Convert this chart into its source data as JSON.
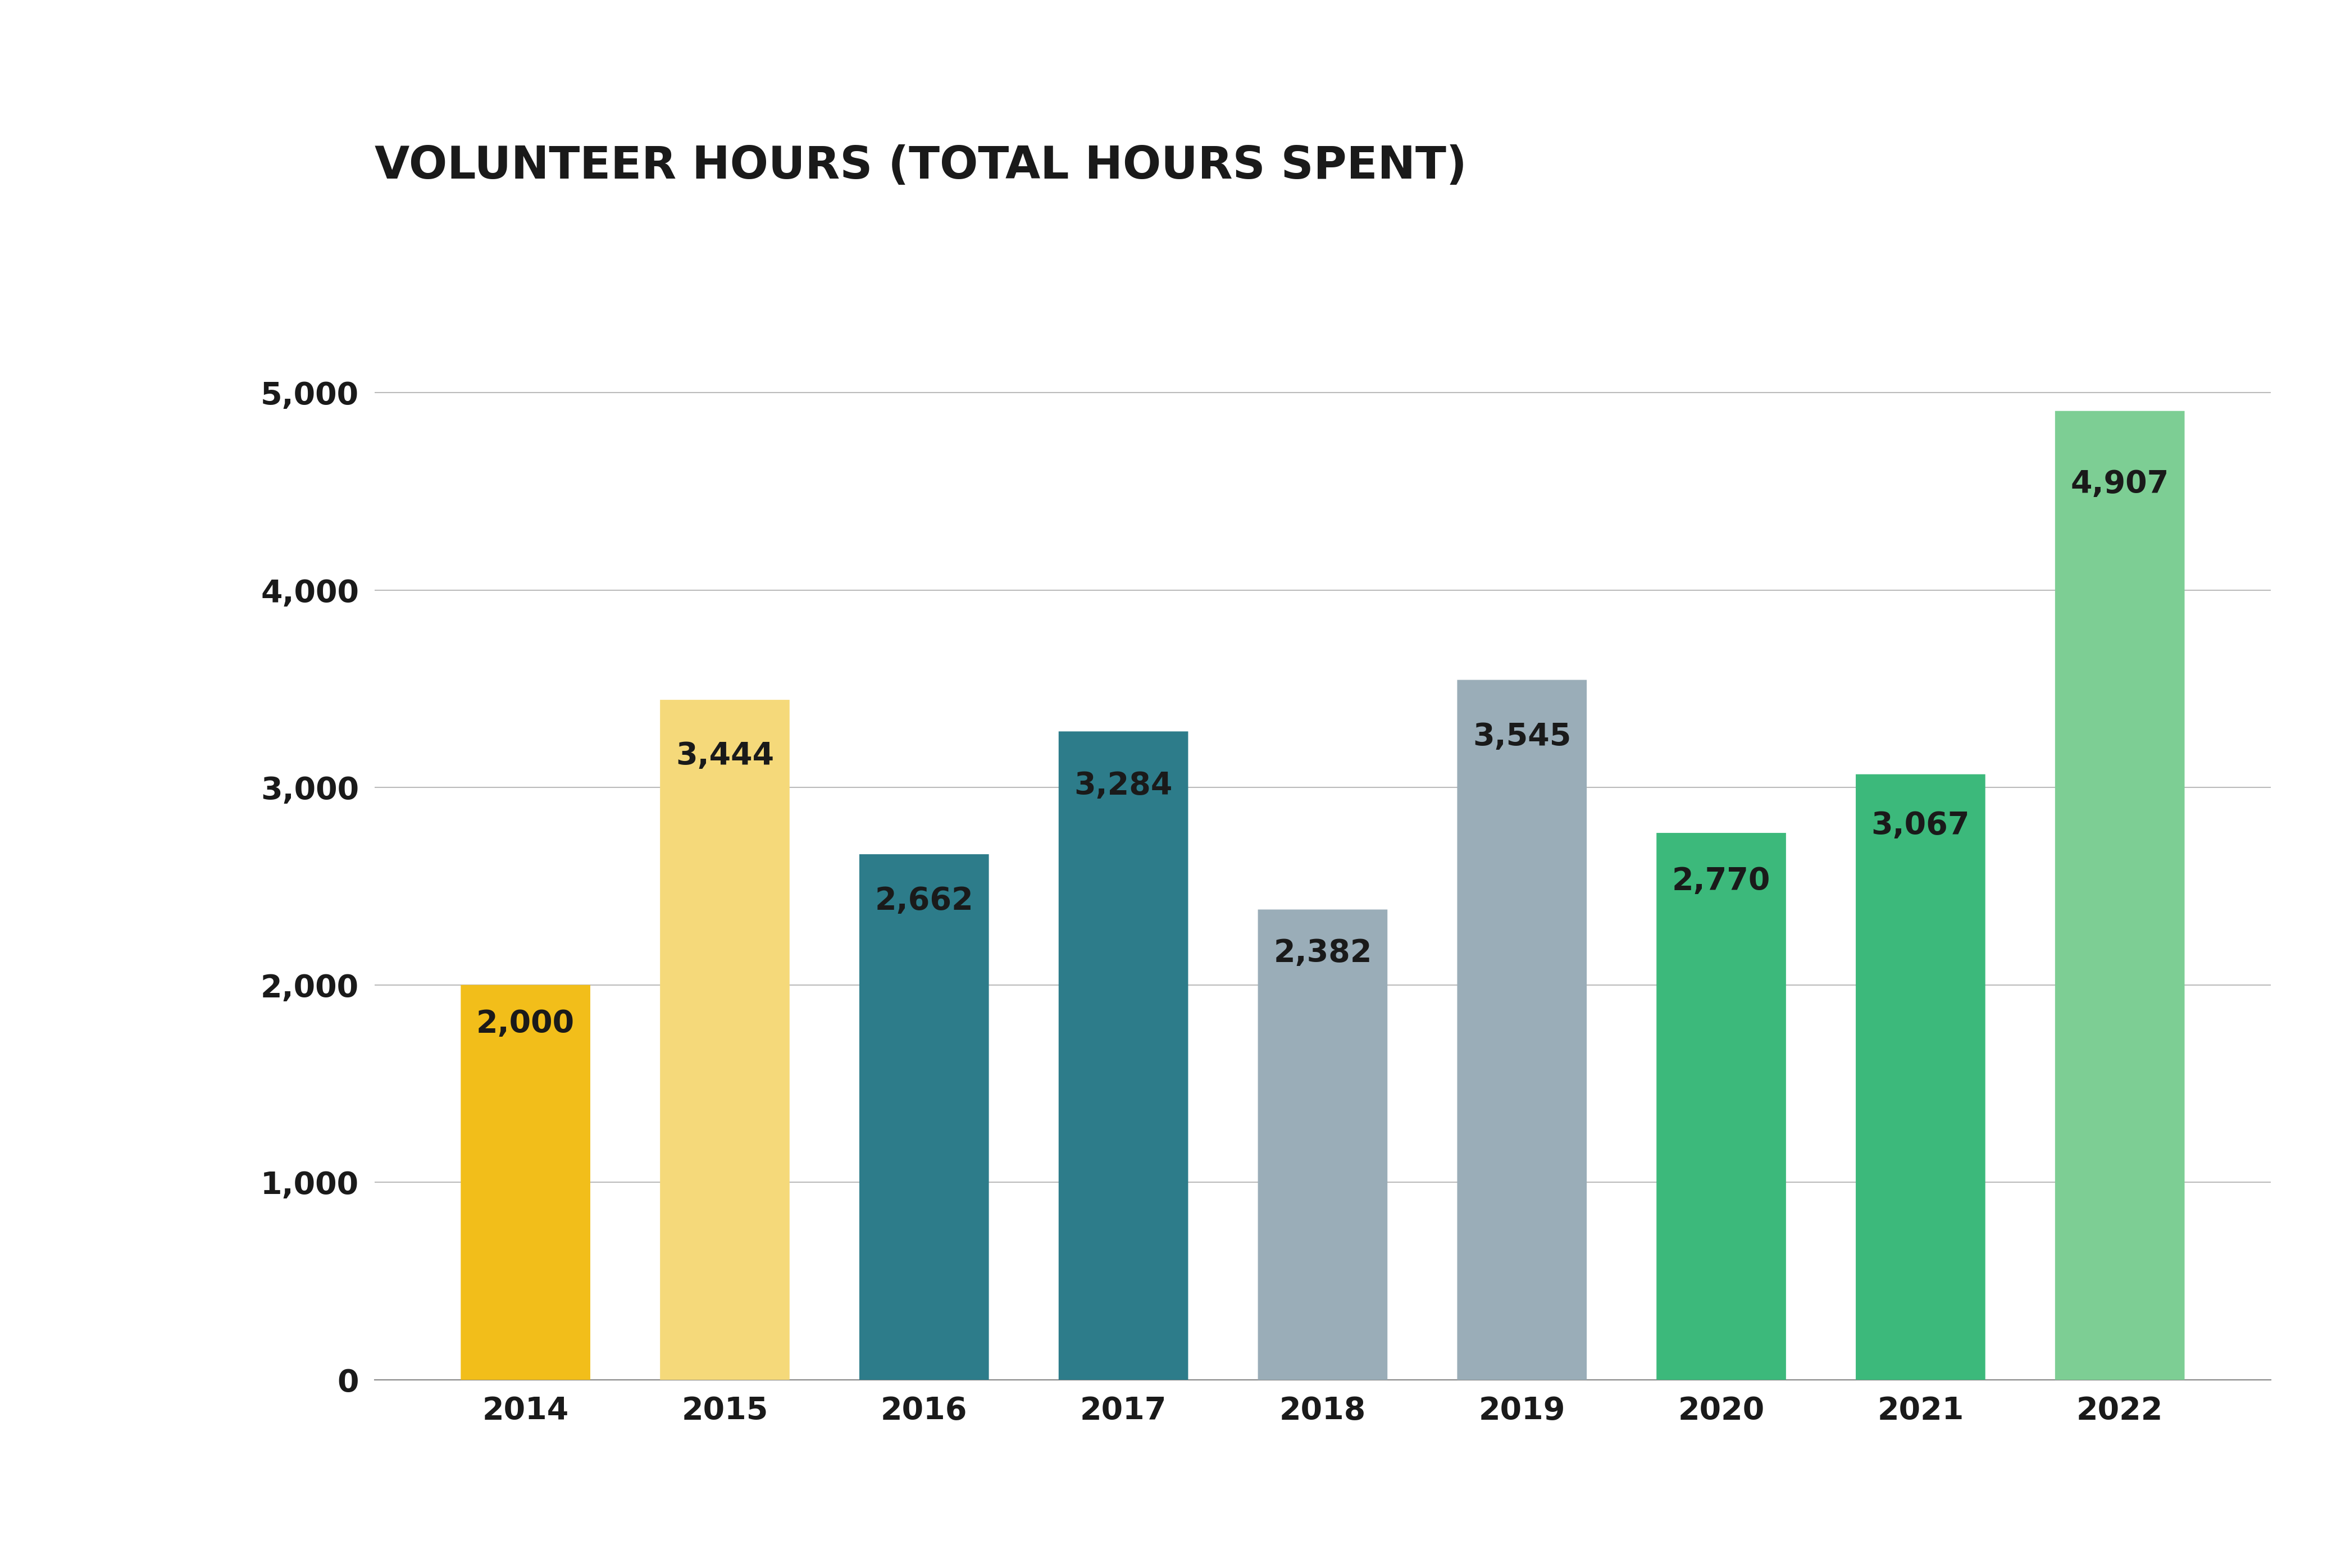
{
  "title": "VOLUNTEER HOURS (TOTAL HOURS SPENT)",
  "categories": [
    "2014",
    "2015",
    "2016",
    "2017",
    "2018",
    "2019",
    "2020",
    "2021",
    "2022"
  ],
  "values": [
    2000,
    3444,
    2662,
    3284,
    2382,
    3545,
    2770,
    3067,
    4907
  ],
  "bar_colors": [
    "#F2BE1A",
    "#F5D97A",
    "#2D7C8A",
    "#2D7C8A",
    "#9AADB8",
    "#9AADB8",
    "#3CB97B",
    "#3CB97B",
    "#7DCE94"
  ],
  "ylim": [
    0,
    5400
  ],
  "yticks": [
    0,
    1000,
    2000,
    3000,
    4000,
    5000
  ],
  "background_color": "#ffffff",
  "title_fontsize": 58,
  "tick_fontsize": 40,
  "value_label_fontsize": 40,
  "grid_color": "#bbbbbb"
}
